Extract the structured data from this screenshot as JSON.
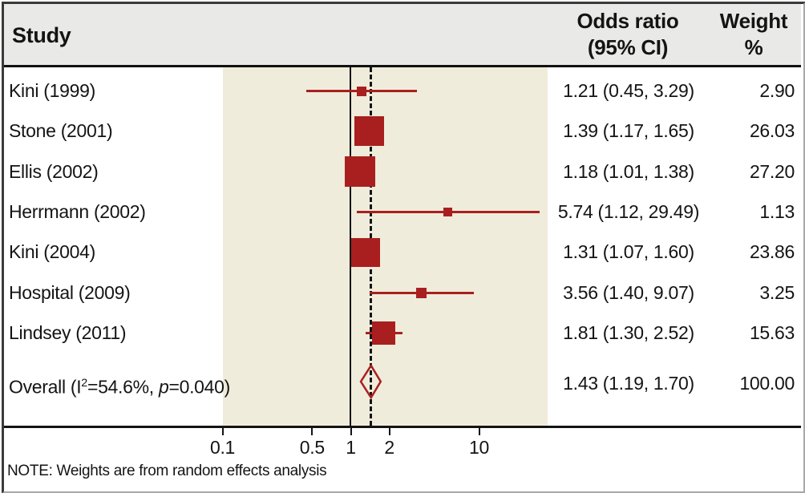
{
  "header": {
    "study": "Study",
    "or_line1": "Odds ratio",
    "or_line2": "(95% CI)",
    "weight_line1": "Weight",
    "weight_line2": "%"
  },
  "note": "NOTE: Weights are from random effects analysis",
  "colors": {
    "marker_red": "#a91f1f",
    "band_beige": "#f0ecdb",
    "header_gray": "#e9e9e7",
    "line_black": "#141414"
  },
  "chart_data": {
    "type": "forest",
    "x_axis": {
      "scale": "log",
      "ticks": [
        {
          "value": 0.1,
          "label": "0.1"
        },
        {
          "value": 0.5,
          "label": "0.5"
        },
        {
          "value": 1,
          "label": "1"
        },
        {
          "value": 2,
          "label": "2"
        },
        {
          "value": 10,
          "label": "10"
        }
      ]
    },
    "reference_line_or": 1,
    "overall_dashed_line_or": 1.43,
    "studies": [
      {
        "label": "Kini (1999)",
        "or": 1.21,
        "ci_low": 0.45,
        "ci_high": 3.29,
        "weight": 2.9,
        "or_ci_text": "1.21 (0.45, 3.29)",
        "weight_text": "2.90"
      },
      {
        "label": "Stone (2001)",
        "or": 1.39,
        "ci_low": 1.17,
        "ci_high": 1.65,
        "weight": 26.03,
        "or_ci_text": "1.39 (1.17, 1.65)",
        "weight_text": "26.03"
      },
      {
        "label": "Ellis (2002)",
        "or": 1.18,
        "ci_low": 1.01,
        "ci_high": 1.38,
        "weight": 27.2,
        "or_ci_text": "1.18 (1.01, 1.38)",
        "weight_text": "27.20"
      },
      {
        "label": "Herrmann (2002)",
        "or": 5.74,
        "ci_low": 1.12,
        "ci_high": 29.49,
        "weight": 1.13,
        "or_ci_text": "5.74 (1.12, 29.49)",
        "weight_text": "1.13"
      },
      {
        "label": "Kini (2004)",
        "or": 1.31,
        "ci_low": 1.07,
        "ci_high": 1.6,
        "weight": 23.86,
        "or_ci_text": "1.31 (1.07, 1.60)",
        "weight_text": "23.86"
      },
      {
        "label": "Hospital (2009)",
        "or": 3.56,
        "ci_low": 1.4,
        "ci_high": 9.07,
        "weight": 3.25,
        "or_ci_text": "3.56 (1.40, 9.07)",
        "weight_text": "3.25"
      },
      {
        "label": "Lindsey (2011)",
        "or": 1.81,
        "ci_low": 1.3,
        "ci_high": 2.52,
        "weight": 15.63,
        "or_ci_text": "1.81 (1.30, 2.52)",
        "weight_text": "15.63"
      }
    ],
    "overall": {
      "label_pre": "Overall (I",
      "label_sup": "2",
      "label_mid": "=54.6%, ",
      "label_p": "p",
      "label_post": "=0.040)",
      "or": 1.43,
      "ci_low": 1.19,
      "ci_high": 1.7,
      "weight": 100.0,
      "or_ci_text": "1.43 (1.19, 1.70)",
      "weight_text": "100.00"
    }
  }
}
